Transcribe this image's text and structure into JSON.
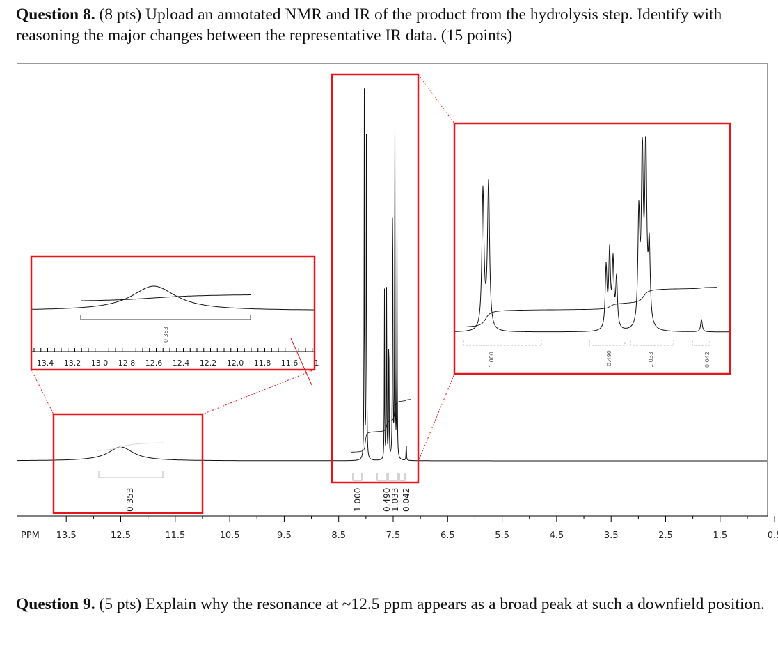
{
  "question8": {
    "number": "Question 8.",
    "text": " (8 pts) Upload an annotated NMR and IR of the product from the hydrolysis step. Identify with reasoning the major changes between the representative IR data. (15 points)"
  },
  "question9": {
    "number": "Question 9.",
    "text": "  (5 pts) Explain why the resonance at ~12.5 ppm appears as a broad peak at such a downfield position."
  },
  "chart_data": {
    "type": "line",
    "xlabel": "PPM",
    "x_axis_reversed": true,
    "xlim": [
      14.0,
      0.0
    ],
    "main_ticks": [
      "13.5",
      "12.5",
      "11.5",
      "10.5",
      "9.5",
      "8.5",
      "7.5",
      "6.5",
      "5.5",
      "4.5",
      "3.5",
      "2.5",
      "1.5",
      "0.5"
    ],
    "peaks_ppm": [
      {
        "ppm": 12.5,
        "shape": "broad",
        "integral": "0.353"
      },
      {
        "ppm": 8.02,
        "shape": "doublet",
        "integral": "1.000"
      },
      {
        "ppm": 7.62,
        "shape": "triplet",
        "integral": "0.490"
      },
      {
        "ppm": 7.48,
        "shape": "triplet",
        "integral": "1.033"
      },
      {
        "ppm": 7.27,
        "shape": "singlet",
        "integral": "0.042"
      }
    ],
    "integrals": [
      "1.000",
      "1.033",
      "0.490",
      "0.042"
    ],
    "inset_left": {
      "ticks": [
        "13.4",
        "13.2",
        "13.0",
        "12.8",
        "12.6",
        "12.4",
        "12.2",
        "12.0",
        "11.8",
        "11.6",
        "1"
      ],
      "integral": "0.353"
    },
    "inset_right": {
      "integrals": [
        "1.000",
        "0.490",
        "1.033",
        "0.042"
      ]
    },
    "highlight_color": "#e8141b"
  }
}
